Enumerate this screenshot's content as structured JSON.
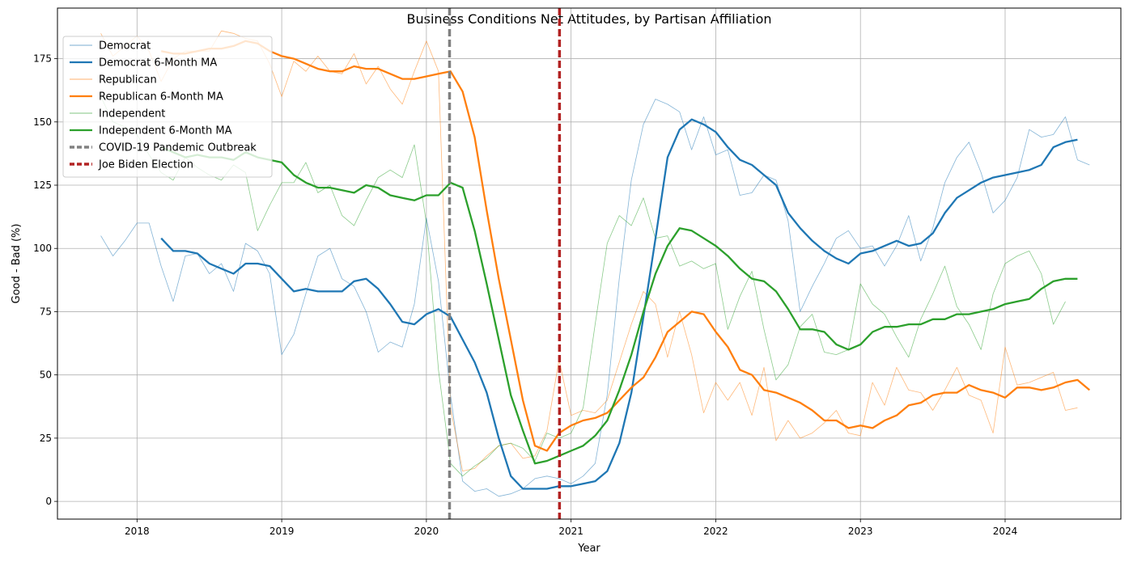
{
  "chart_data": {
    "type": "line",
    "title": "Business Conditions Net Attitudes, by Partisan Affiliation",
    "xlabel": "Year",
    "ylabel": "Good - Bad (%)",
    "xlim": [
      2017.45,
      2024.8
    ],
    "ylim": [
      -7,
      195
    ],
    "x_ticks": [
      2018,
      2019,
      2020,
      2021,
      2022,
      2023,
      2024
    ],
    "y_ticks": [
      0,
      25,
      50,
      75,
      100,
      125,
      150,
      175
    ],
    "grid": true,
    "legend_position": "top-left",
    "monthly_x_start": 2017.75,
    "monthly_x_step": 0.0833333,
    "ma_x_start": 2018.167,
    "series": [
      {
        "name": "Democrat",
        "kind": "raw",
        "color": "#1f77b4",
        "values": [
          105,
          97,
          103,
          110,
          110,
          93,
          79,
          97,
          98,
          90,
          94,
          83,
          102,
          99,
          90,
          58,
          66,
          82,
          97,
          100,
          88,
          85,
          75,
          59,
          63,
          61,
          78,
          112,
          87,
          42,
          8,
          4,
          5,
          2,
          3,
          5,
          9,
          10,
          9,
          7,
          10,
          15,
          42,
          88,
          127,
          149,
          159,
          157,
          154,
          139,
          152,
          137,
          139,
          121,
          122,
          129,
          127,
          111,
          75,
          85,
          94,
          104,
          107,
          100,
          101,
          93,
          101,
          113,
          95,
          108,
          126,
          136,
          142,
          130,
          114,
          119,
          128,
          147,
          144,
          145,
          152,
          135,
          133
        ]
      },
      {
        "name": "Democrat 6-Month MA",
        "kind": "ma",
        "color": "#1f77b4",
        "values": [
          104,
          99,
          99,
          98,
          94,
          92,
          90,
          94,
          94,
          93,
          88,
          83,
          84,
          83,
          83,
          83,
          87,
          88,
          84,
          78,
          71,
          70,
          74,
          76,
          73,
          64,
          55,
          43,
          25,
          10,
          5,
          5,
          5,
          6,
          6,
          7,
          8,
          12,
          23,
          43,
          73,
          104,
          136,
          147,
          151,
          149,
          146,
          140,
          135,
          133,
          129,
          125,
          114,
          108,
          103,
          99,
          96,
          94,
          98,
          99,
          101,
          103,
          101,
          102,
          106,
          114,
          120,
          123,
          126,
          128,
          129,
          130,
          131,
          133,
          140,
          142,
          143
        ]
      },
      {
        "name": "Republican",
        "kind": "raw",
        "color": "#ff7f0e",
        "values": [
          185,
          176,
          180,
          184,
          178,
          166,
          175,
          178,
          178,
          178,
          186,
          185,
          183,
          182,
          173,
          160,
          174,
          170,
          176,
          170,
          169,
          177,
          165,
          172,
          163,
          157,
          170,
          182,
          170,
          37,
          12,
          13,
          18,
          22,
          23,
          17,
          18,
          28,
          56,
          34,
          36,
          35,
          40,
          55,
          70,
          83,
          78,
          57,
          75,
          58,
          35,
          47,
          40,
          47,
          34,
          53,
          24,
          32,
          25,
          27,
          31,
          36,
          27,
          26,
          47,
          38,
          53,
          44,
          43,
          36,
          44,
          53,
          42,
          40,
          27,
          61,
          46,
          47,
          49,
          51,
          36,
          37
        ]
      },
      {
        "name": "Republican 6-Month MA",
        "kind": "ma",
        "color": "#ff7f0e",
        "values": [
          178,
          177,
          177,
          178,
          179,
          179,
          180,
          182,
          181,
          178,
          176,
          175,
          173,
          171,
          170,
          170,
          172,
          171,
          171,
          169,
          167,
          167,
          168,
          169,
          170,
          162,
          144,
          115,
          88,
          64,
          40,
          22,
          20,
          27,
          30,
          32,
          33,
          35,
          40,
          45,
          49,
          57,
          67,
          71,
          75,
          74,
          67,
          61,
          52,
          50,
          44,
          43,
          41,
          39,
          36,
          32,
          32,
          29,
          30,
          29,
          32,
          34,
          38,
          39,
          42,
          43,
          43,
          46,
          44,
          43,
          41,
          45,
          45,
          44,
          45,
          47,
          48,
          44
        ]
      },
      {
        "name": "Independent",
        "kind": "raw",
        "color": "#2ca02c",
        "values": [
          160,
          150,
          148,
          145,
          137,
          130,
          127,
          136,
          132,
          129,
          127,
          133,
          130,
          107,
          117,
          126,
          126,
          134,
          122,
          125,
          113,
          109,
          119,
          128,
          131,
          128,
          141,
          110,
          52,
          15,
          10,
          14,
          17,
          22,
          23,
          21,
          16,
          27,
          25,
          27,
          37,
          70,
          102,
          113,
          109,
          120,
          104,
          105,
          93,
          95,
          92,
          94,
          68,
          81,
          91,
          68,
          48,
          54,
          69,
          74,
          59,
          58,
          60,
          86,
          78,
          74,
          65,
          57,
          72,
          82,
          93,
          77,
          70,
          60,
          82,
          94,
          97,
          99,
          90,
          70,
          79
        ]
      },
      {
        "name": "Independent 6-Month MA",
        "kind": "ma",
        "color": "#2ca02c",
        "values": [
          140,
          138,
          136,
          137,
          136,
          136,
          135,
          138,
          136,
          135,
          134,
          129,
          126,
          124,
          124,
          123,
          122,
          125,
          124,
          121,
          120,
          119,
          121,
          121,
          126,
          124,
          107,
          86,
          64,
          42,
          28,
          15,
          16,
          18,
          20,
          22,
          26,
          32,
          44,
          58,
          75,
          90,
          101,
          108,
          107,
          104,
          101,
          97,
          92,
          88,
          87,
          83,
          76,
          68,
          68,
          67,
          62,
          60,
          62,
          67,
          69,
          69,
          70,
          70,
          72,
          72,
          74,
          74,
          75,
          76,
          78,
          79,
          80,
          84,
          87,
          88,
          88
        ]
      },
      {
        "name": "COVID-19 Pandemic Outbreak",
        "kind": "vline",
        "color": "#808080",
        "x": 2020.16
      },
      {
        "name": "Joe Biden Election",
        "kind": "vline",
        "color": "#b22222",
        "x": 2020.92
      }
    ]
  }
}
